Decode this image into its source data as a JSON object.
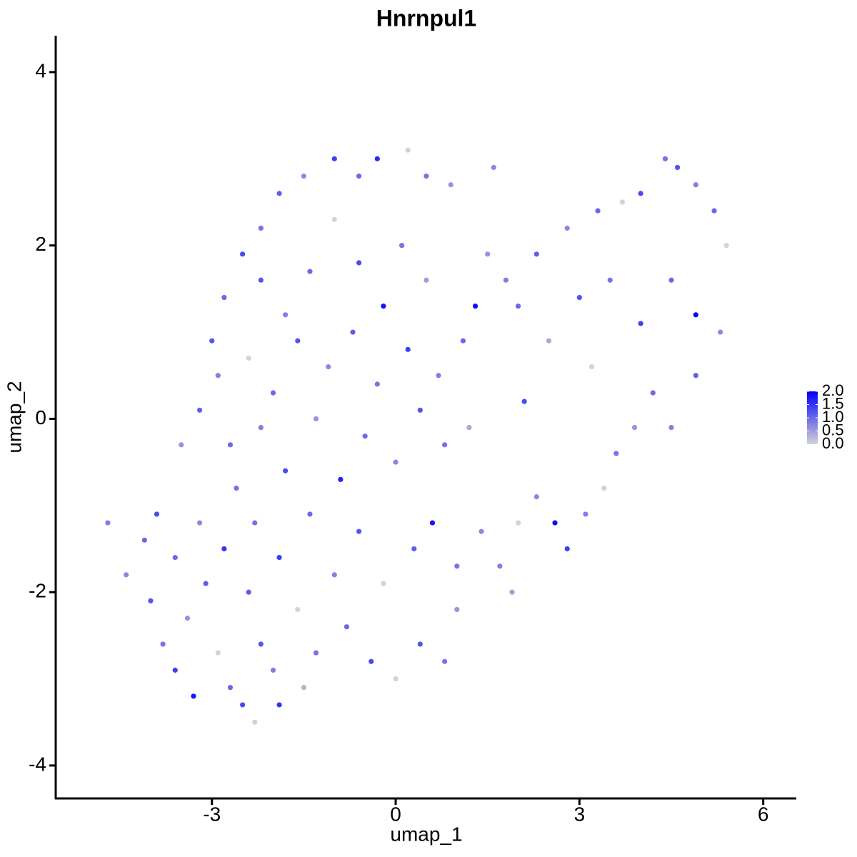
{
  "chart_data": {
    "type": "scatter",
    "title": "Hnrnpul1",
    "xlabel": "umap_1",
    "ylabel": "umap_2",
    "x": [
      -4.7,
      -4.4,
      -4.1,
      -4.0,
      -3.8,
      -3.6,
      -3.4,
      -3.3,
      -3.1,
      -2.9,
      -2.7,
      -2.5,
      -2.3,
      -2.2,
      -2.0,
      -1.9,
      -1.5,
      -1.3,
      -1.6,
      -2.4,
      -3.6,
      -3.9,
      -3.2,
      -2.8,
      -2.6,
      -3.5,
      -3.2,
      -2.9,
      -3.0,
      -2.8,
      -2.5,
      -2.2,
      -1.9,
      -1.5,
      -1.0,
      -0.6,
      -0.3,
      0.2,
      0.5,
      0.9,
      1.6,
      -2.2,
      -1.8,
      -1.4,
      -1.0,
      -0.6,
      -0.2,
      0.1,
      0.5,
      -2.4,
      -2.0,
      -1.6,
      -1.1,
      -0.7,
      -0.3,
      0.2,
      0.7,
      1.1,
      1.3,
      -2.7,
      -2.2,
      -1.8,
      -1.3,
      -0.9,
      -0.5,
      0.0,
      0.4,
      0.8,
      1.2,
      -2.3,
      -1.9,
      -1.4,
      -1.0,
      -0.6,
      -0.2,
      0.3,
      0.6,
      1.0,
      1.4,
      -0.8,
      -0.4,
      0.0,
      0.4,
      0.8,
      1.0,
      1.7,
      1.9,
      2.0,
      2.3,
      2.6,
      2.8,
      3.1,
      3.4,
      3.6,
      3.9,
      4.2,
      4.5,
      4.9,
      5.3,
      5.4,
      5.2,
      4.9,
      4.6,
      4.4,
      4.0,
      3.7,
      3.3,
      2.8,
      2.3,
      1.8,
      1.5,
      2.0,
      2.5,
      3.0,
      3.5,
      4.0,
      4.5,
      4.9,
      3.2,
      2.1
    ],
    "y": [
      -1.2,
      -1.8,
      -1.4,
      -2.1,
      -2.6,
      -2.9,
      -2.3,
      -3.2,
      -1.9,
      -2.7,
      -3.1,
      -3.3,
      -3.5,
      -2.6,
      -2.9,
      -3.3,
      -3.1,
      -2.7,
      -2.2,
      -2.0,
      -1.6,
      -1.1,
      -1.2,
      -1.5,
      -0.8,
      -0.3,
      0.1,
      0.5,
      0.9,
      1.4,
      1.9,
      2.2,
      2.6,
      2.8,
      3.0,
      2.8,
      3.0,
      3.1,
      2.8,
      2.7,
      2.9,
      1.6,
      1.2,
      1.7,
      2.3,
      1.8,
      1.3,
      2.0,
      1.6,
      0.7,
      0.3,
      0.9,
      0.6,
      1.0,
      0.4,
      0.8,
      0.5,
      0.9,
      1.3,
      -0.3,
      -0.1,
      -0.6,
      0.0,
      -0.7,
      -0.2,
      -0.5,
      0.1,
      -0.3,
      -0.1,
      -1.2,
      -1.6,
      -1.1,
      -1.8,
      -1.3,
      -1.9,
      -1.5,
      -1.2,
      -1.7,
      -1.3,
      -2.4,
      -2.8,
      -3.0,
      -2.6,
      -2.8,
      -2.2,
      -1.7,
      -2.0,
      -1.2,
      -0.9,
      -1.2,
      -1.5,
      -1.1,
      -0.8,
      -0.4,
      -0.1,
      0.3,
      -0.1,
      0.5,
      1.0,
      2.0,
      2.4,
      2.7,
      2.9,
      3.0,
      2.6,
      2.5,
      2.4,
      2.2,
      1.9,
      1.6,
      1.9,
      1.3,
      0.9,
      1.4,
      1.6,
      1.1,
      1.6,
      1.2,
      0.6,
      0.2
    ],
    "values": [
      0.8,
      0.7,
      1.0,
      1.2,
      0.9,
      1.4,
      0.6,
      1.8,
      1.1,
      0.0,
      1.0,
      1.3,
      0.0,
      1.2,
      0.8,
      1.5,
      0.3,
      0.9,
      0.0,
      1.1,
      1.0,
      1.3,
      0.7,
      1.5,
      0.9,
      0.6,
      1.1,
      0.8,
      1.2,
      1.0,
      1.3,
      0.9,
      1.1,
      0.7,
      1.4,
      1.0,
      1.6,
      0.0,
      0.9,
      0.6,
      0.7,
      1.2,
      0.8,
      1.0,
      0.0,
      1.3,
      1.8,
      0.9,
      0.5,
      0.0,
      1.0,
      1.2,
      0.7,
      1.1,
      0.9,
      1.4,
      0.8,
      1.0,
      1.9,
      1.0,
      0.8,
      1.3,
      0.6,
      1.7,
      1.0,
      0.7,
      1.2,
      0.9,
      0.4,
      0.9,
      1.4,
      1.0,
      0.8,
      1.2,
      0.0,
      1.1,
      1.8,
      0.9,
      0.7,
      1.0,
      1.3,
      0.0,
      1.2,
      0.9,
      0.6,
      0.8,
      0.5,
      0.0,
      0.7,
      1.9,
      1.4,
      0.8,
      0.0,
      0.9,
      0.6,
      1.0,
      0.8,
      1.1,
      0.7,
      0.0,
      1.0,
      0.8,
      1.2,
      0.9,
      1.3,
      0.0,
      1.0,
      0.7,
      1.1,
      0.8,
      0.6,
      1.0,
      0.4,
      1.2,
      0.9,
      1.4,
      1.0,
      2.0,
      0.0,
      1.3
    ],
    "xlim": [
      -5.55,
      6.54
    ],
    "ylim": [
      -4.38,
      4.42
    ],
    "xticks": [
      -3,
      0,
      3,
      6
    ],
    "yticks": [
      -4,
      -2,
      0,
      2,
      4
    ],
    "colorbar": {
      "lim": [
        0,
        2
      ],
      "low": "#d3d3d3",
      "high": "#0000ff",
      "ticks": [
        {
          "value": 0,
          "label": "0.0"
        },
        {
          "value": 0.5,
          "label": "0.5"
        },
        {
          "value": 1,
          "label": "1.0"
        },
        {
          "value": 1.5,
          "label": "1.5"
        },
        {
          "value": 2,
          "label": "2.0"
        }
      ]
    }
  }
}
